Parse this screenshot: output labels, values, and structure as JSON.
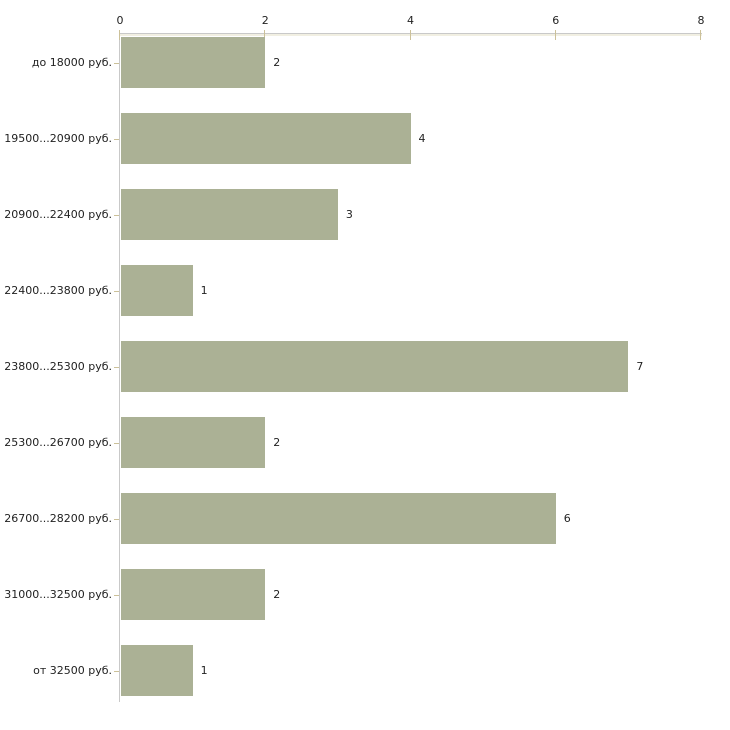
{
  "chart_data": {
    "type": "bar",
    "orientation": "horizontal",
    "title": "",
    "xlabel": "",
    "ylabel": "",
    "categories": [
      "до 18000 руб.",
      "19500...20900 руб.",
      "20900...22400 руб.",
      "22400...23800 руб.",
      "23800...25300 руб.",
      "25300...26700 руб.",
      "26700...28200 руб.",
      "31000...32500 руб.",
      "от 32500 руб."
    ],
    "values": [
      2,
      4,
      3,
      1,
      7,
      2,
      6,
      2,
      1
    ],
    "value_labels": [
      "2",
      "4",
      "3",
      "1",
      "7",
      "2",
      "6",
      "2",
      "1"
    ],
    "xlim": [
      0,
      8
    ],
    "x_ticks": [
      0,
      2,
      4,
      6,
      8
    ],
    "x_tick_labels": [
      "0",
      "2",
      "4",
      "6",
      "8"
    ],
    "axis_position": "top",
    "grid": false,
    "legend": "none",
    "colors": {
      "bar": "#abb195",
      "axis_line": "#c9c9c9",
      "tick_mark": "#ccc199",
      "text": "#222222",
      "background": "#ffffff"
    }
  }
}
